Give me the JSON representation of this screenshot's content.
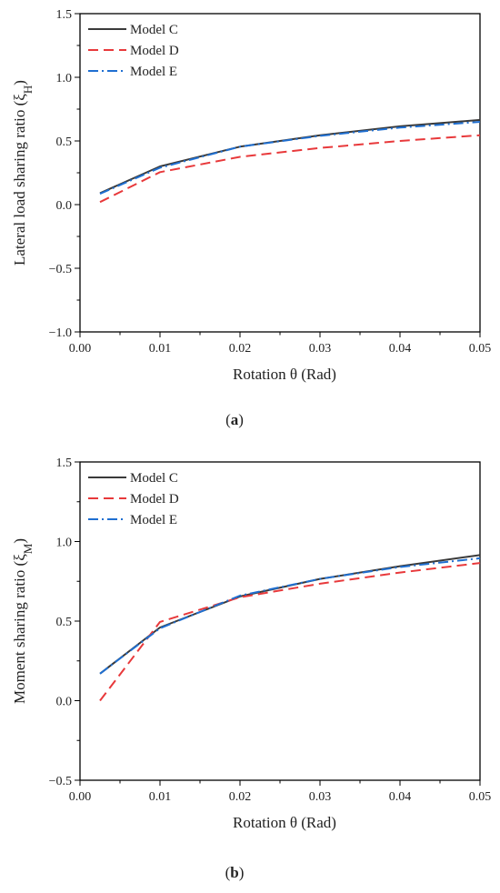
{
  "chart_data": [
    {
      "type": "line",
      "panel_label": "a",
      "xlabel": "Rotation θ (Rad)",
      "ylabel": "Lateral load sharing ratio (ξ",
      "ylabel_sub": "H",
      "ylabel_close": ")",
      "xlim": [
        0.0,
        0.05
      ],
      "ylim": [
        -1.0,
        1.5
      ],
      "x_ticks": [
        0.0,
        0.01,
        0.02,
        0.03,
        0.04,
        0.05
      ],
      "x_tick_labels": [
        "0.00",
        "0.01",
        "0.02",
        "0.03",
        "0.04",
        "0.05"
      ],
      "y_ticks": [
        -1.0,
        -0.5,
        0.0,
        0.5,
        1.0,
        1.5
      ],
      "y_tick_labels": [
        "−1.0",
        "−0.5",
        "0.0",
        "0.5",
        "1.0",
        "1.5"
      ],
      "legend_position": "top-left",
      "series": [
        {
          "name": "Model C",
          "color": "#3a3a3a",
          "style": "solid",
          "x": [
            0.0025,
            0.01,
            0.02,
            0.03,
            0.04,
            0.05
          ],
          "y": [
            0.09,
            0.3,
            0.455,
            0.545,
            0.615,
            0.665
          ]
        },
        {
          "name": "Model D",
          "color": "#e8393b",
          "style": "dashed",
          "x": [
            0.0025,
            0.01,
            0.02,
            0.03,
            0.04,
            0.05
          ],
          "y": [
            0.02,
            0.255,
            0.375,
            0.445,
            0.5,
            0.545
          ]
        },
        {
          "name": "Model E",
          "color": "#1f6fd1",
          "style": "dashdot",
          "x": [
            0.0025,
            0.01,
            0.02,
            0.03,
            0.04,
            0.05
          ],
          "y": [
            0.085,
            0.29,
            0.455,
            0.54,
            0.605,
            0.65
          ]
        }
      ]
    },
    {
      "type": "line",
      "panel_label": "b",
      "xlabel": "Rotation θ (Rad)",
      "ylabel": "Moment sharing ratio (ξ",
      "ylabel_sub": "M",
      "ylabel_close": ")",
      "xlim": [
        0.0,
        0.05
      ],
      "ylim": [
        -0.5,
        1.5
      ],
      "x_ticks": [
        0.0,
        0.01,
        0.02,
        0.03,
        0.04,
        0.05
      ],
      "x_tick_labels": [
        "0.00",
        "0.01",
        "0.02",
        "0.03",
        "0.04",
        "0.05"
      ],
      "y_ticks": [
        -0.5,
        0.0,
        0.5,
        1.0,
        1.5
      ],
      "y_tick_labels": [
        "−0.5",
        "0.0",
        "0.5",
        "1.0",
        "1.5"
      ],
      "legend_position": "top-left",
      "series": [
        {
          "name": "Model C",
          "color": "#3a3a3a",
          "style": "solid",
          "x": [
            0.0025,
            0.01,
            0.02,
            0.03,
            0.04,
            0.05
          ],
          "y": [
            0.17,
            0.46,
            0.655,
            0.765,
            0.845,
            0.915
          ]
        },
        {
          "name": "Model D",
          "color": "#e8393b",
          "style": "dashed",
          "x": [
            0.0025,
            0.01,
            0.02,
            0.03,
            0.04,
            0.05
          ],
          "y": [
            0.0,
            0.495,
            0.65,
            0.735,
            0.805,
            0.865
          ]
        },
        {
          "name": "Model E",
          "color": "#1f6fd1",
          "style": "dashdot",
          "x": [
            0.0025,
            0.01,
            0.02,
            0.03,
            0.04,
            0.05
          ],
          "y": [
            0.17,
            0.455,
            0.66,
            0.765,
            0.84,
            0.895
          ]
        }
      ]
    }
  ]
}
